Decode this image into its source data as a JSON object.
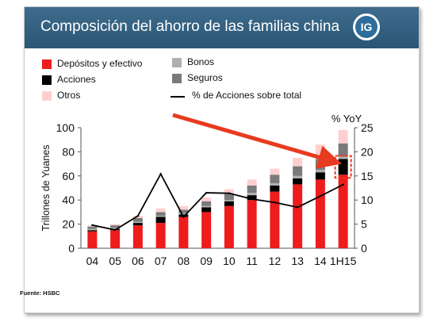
{
  "header": {
    "title": "Composición del ahorro de las familias china",
    "logo_text": "IG",
    "background_color": "#2f5b7c"
  },
  "legend": {
    "depositos": "Depósitos y efectivo",
    "acciones": "Acciones",
    "otros": "Otros",
    "bonos": "Bonos",
    "seguros": "Seguros",
    "linea": "% de Acciones sobre total"
  },
  "source": "Fuente: HSBC",
  "chart_data": {
    "type": "bar",
    "stacked": true,
    "categories": [
      "04",
      "05",
      "06",
      "07",
      "08",
      "09",
      "10",
      "11",
      "12",
      "13",
      "14",
      "1H15"
    ],
    "ylabel": "Trillones de Yuanes",
    "ylabel_right": "% YoY",
    "ylim": [
      0,
      100
    ],
    "ylim_right": [
      0,
      25
    ],
    "yticks": [
      0,
      20,
      40,
      60,
      80,
      100
    ],
    "yticks_right": [
      0,
      5,
      10,
      15,
      20,
      25
    ],
    "series": [
      {
        "name": "Depósitos y efectivo",
        "color": "#ee1c1c",
        "values": [
          14,
          15,
          19,
          21,
          26,
          30,
          35,
          40,
          47,
          53,
          57,
          61
        ]
      },
      {
        "name": "Acciones",
        "color": "#000000",
        "values": [
          1,
          1,
          2,
          5,
          2,
          4,
          4,
          4,
          5,
          5,
          6,
          13
        ]
      },
      {
        "name": "Bonos",
        "color": "#b0b0b0",
        "values": [
          1,
          1,
          1,
          1,
          1,
          1,
          1,
          2,
          2,
          2,
          2,
          2
        ]
      },
      {
        "name": "Seguros",
        "color": "#7a7a7a",
        "values": [
          2,
          2,
          3,
          3,
          3,
          4,
          5,
          6,
          7,
          8,
          9,
          11
        ]
      },
      {
        "name": "Otros",
        "color": "#ffcfcf",
        "values": [
          1,
          1,
          2,
          3,
          3,
          3,
          4,
          5,
          5,
          7,
          12,
          11
        ]
      }
    ],
    "line_series": {
      "name": "% de Acciones sobre total",
      "axis": "right",
      "color": "#000000",
      "values": [
        4.8,
        3.8,
        6.7,
        15.4,
        6.5,
        11.5,
        11.4,
        10.2,
        9.5,
        8.5,
        10.8,
        13.2
      ]
    },
    "annotation": {
      "type": "arrow",
      "color": "#e83a1f",
      "target_category": "1H15",
      "highlight_series": "Acciones"
    },
    "grid": false
  }
}
